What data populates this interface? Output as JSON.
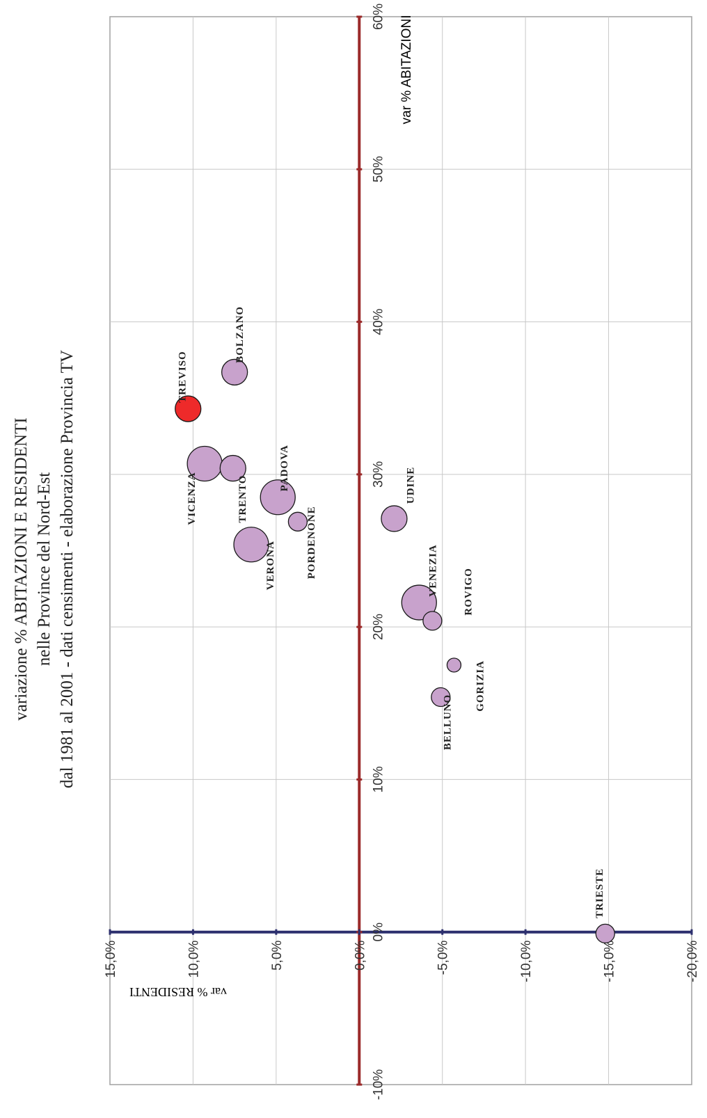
{
  "title_lines": [
    "variazione % ABITAZIONI E RESIDENTI",
    "nelle Province del Nord-Est",
    "dal 1981 al 2001 - dati censimenti - elaborazione Provincia TV"
  ],
  "colors": {
    "grid": "#c8c8c8",
    "frame": "#a0a0a0",
    "abitazioni_axis": "#9b2a2a",
    "residenti_axis": "#2c2f6e",
    "bubble_fill": "#c8a2cc",
    "bubble_highlight": "#ee2a2a",
    "bubble_stroke": "#1a1a1a"
  },
  "chart_data": {
    "type": "bubble",
    "title": "variazione % ABITAZIONI E RESIDENTI nelle Province del Nord-Est dal 1981 al 2001 - dati censimenti - elaborazione Provincia TV",
    "ylabel": "var % ABITAZIONI",
    "xlabel": "var % RESIDENTI",
    "abitazioni_range": [
      -10,
      60
    ],
    "abitazioni_ticks": [
      "-10%",
      "0%",
      "10%",
      "20%",
      "30%",
      "40%",
      "50%",
      "60%"
    ],
    "residenti_range": [
      -20,
      15
    ],
    "residenti_ticks": [
      "15,0%",
      "10,0%",
      "5,0%",
      "0,0%",
      "-5,0%",
      "-10,0%",
      "-15,0%",
      "-20,0%"
    ],
    "grid": true,
    "orientation": "rotated 90 degrees (chart printed sideways)",
    "points": [
      {
        "name": "TREVISO",
        "residenti": 10.3,
        "abitazioni": 34.3,
        "size": "medium",
        "highlight": true
      },
      {
        "name": "BOLZANO",
        "residenti": 7.5,
        "abitazioni": 36.7,
        "size": "medium",
        "highlight": false
      },
      {
        "name": "VICENZA",
        "residenti": 9.3,
        "abitazioni": 30.7,
        "size": "large",
        "highlight": false
      },
      {
        "name": "TRENTO",
        "residenti": 7.6,
        "abitazioni": 30.4,
        "size": "medium",
        "highlight": false
      },
      {
        "name": "PADOVA",
        "residenti": 4.9,
        "abitazioni": 28.5,
        "size": "large",
        "highlight": false
      },
      {
        "name": "VERONA",
        "residenti": 6.5,
        "abitazioni": 25.4,
        "size": "large",
        "highlight": false
      },
      {
        "name": "PORDENONE",
        "residenti": 3.7,
        "abitazioni": 26.9,
        "size": "small",
        "highlight": false
      },
      {
        "name": "UDINE",
        "residenti": -2.1,
        "abitazioni": 27.1,
        "size": "medium",
        "highlight": false
      },
      {
        "name": "VENEZIA",
        "residenti": -3.6,
        "abitazioni": 21.6,
        "size": "large",
        "highlight": false
      },
      {
        "name": "ROVIGO",
        "residenti": -4.4,
        "abitazioni": 20.4,
        "size": "small",
        "highlight": false
      },
      {
        "name": "GORIZIA",
        "residenti": -5.7,
        "abitazioni": 17.5,
        "size": "tiny",
        "highlight": false
      },
      {
        "name": "BELLUNO",
        "residenti": -4.9,
        "abitazioni": 15.4,
        "size": "small",
        "highlight": false
      },
      {
        "name": "TRIESTE",
        "residenti": -14.8,
        "abitazioni": -0.1,
        "size": "small",
        "highlight": false
      }
    ]
  }
}
